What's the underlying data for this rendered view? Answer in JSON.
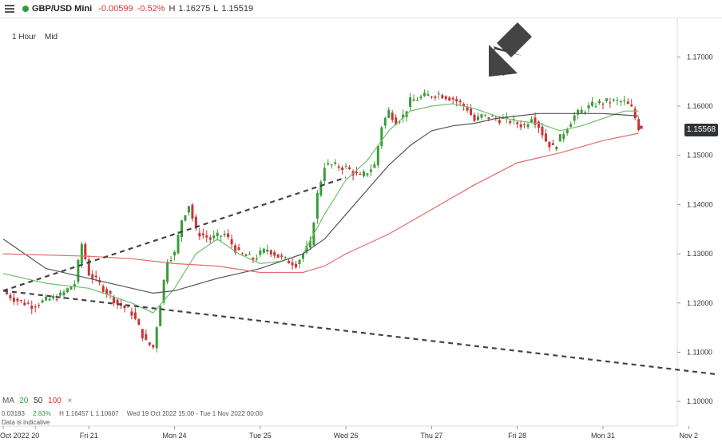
{
  "header": {
    "symbol": "GBP/USD Mini",
    "change": "-0.00599",
    "change_pct": "-0.52%",
    "high_label": "H",
    "high": "1.16275",
    "low_label": "L",
    "low": "1.15519"
  },
  "timeframe": "1 Hour",
  "price_type": "Mid",
  "price_tag": "1.15568",
  "legend": {
    "ma": "MA",
    "p20": "20",
    "p50": "50",
    "p100": "100",
    "close": "×"
  },
  "info": {
    "v1": "0.03183",
    "v2": "2.83%",
    "hl": "H 1.16457   L 1.10607",
    "range": "Wed 19 Oct 2022 15:00 - Tue 1 Nov 2022 00:00",
    "indicative": "Data is indicative"
  },
  "colors": {
    "up": "#3a9c3a",
    "down": "#cc3333",
    "ma20": "#6cc26c",
    "ma50": "#555555",
    "ma100": "#e36b6b",
    "trend": "#444444",
    "arrow": "#444444",
    "tag_bg": "#2f3438"
  },
  "chart_data": {
    "type": "candlestick",
    "ylim": [
      1.095,
      1.178
    ],
    "y_ticks": [
      1.17,
      1.16,
      1.15,
      1.14,
      1.13,
      1.12,
      1.11,
      1.1
    ],
    "y_tick_labels": [
      "1.17000",
      "1.16000",
      "1.15000",
      "1.14000",
      "1.13000",
      "1.12000",
      "1.11000",
      "1.10000"
    ],
    "x_ticks": [
      {
        "label": "Oct 2022",
        "x": 0
      },
      {
        "label": "20",
        "x": 9
      },
      {
        "label": "Fri 21",
        "x": 24
      },
      {
        "label": "Mon 24",
        "x": 48
      },
      {
        "label": "Tue 25",
        "x": 72
      },
      {
        "label": "Wed 26",
        "x": 96
      },
      {
        "label": "Thu 27",
        "x": 120
      },
      {
        "label": "Fri 28",
        "x": 144
      },
      {
        "label": "Mon 31",
        "x": 168
      },
      {
        "label": "Nov 2",
        "x": 192
      }
    ],
    "close_path": [
      [
        0,
        1.1222
      ],
      [
        4,
        1.1205
      ],
      [
        8,
        1.1195
      ],
      [
        12,
        1.1205
      ],
      [
        16,
        1.1215
      ],
      [
        20,
        1.124
      ],
      [
        22,
        1.132
      ],
      [
        24,
        1.126
      ],
      [
        28,
        1.123
      ],
      [
        32,
        1.12
      ],
      [
        36,
        1.118
      ],
      [
        40,
        1.112
      ],
      [
        42,
        1.111
      ],
      [
        44,
        1.12
      ],
      [
        46,
        1.129
      ],
      [
        48,
        1.13
      ],
      [
        50,
        1.137
      ],
      [
        52,
        1.14
      ],
      [
        54,
        1.1345
      ],
      [
        58,
        1.133
      ],
      [
        62,
        1.134
      ],
      [
        66,
        1.13
      ],
      [
        70,
        1.129
      ],
      [
        74,
        1.131
      ],
      [
        78,
        1.129
      ],
      [
        82,
        1.128
      ],
      [
        86,
        1.132
      ],
      [
        88,
        1.142
      ],
      [
        90,
        1.148
      ],
      [
        92,
        1.148
      ],
      [
        96,
        1.1475
      ],
      [
        100,
        1.1455
      ],
      [
        104,
        1.148
      ],
      [
        106,
        1.156
      ],
      [
        108,
        1.159
      ],
      [
        110,
        1.157
      ],
      [
        112,
        1.158
      ],
      [
        114,
        1.161
      ],
      [
        118,
        1.162
      ],
      [
        122,
        1.1625
      ],
      [
        126,
        1.1615
      ],
      [
        130,
        1.1595
      ],
      [
        132,
        1.157
      ],
      [
        134,
        1.158
      ],
      [
        138,
        1.1575
      ],
      [
        142,
        1.157
      ],
      [
        146,
        1.156
      ],
      [
        148,
        1.158
      ],
      [
        150,
        1.156
      ],
      [
        152,
        1.153
      ],
      [
        154,
        1.1515
      ],
      [
        156,
        1.1535
      ],
      [
        158,
        1.156
      ],
      [
        160,
        1.158
      ],
      [
        162,
        1.159
      ],
      [
        166,
        1.1605
      ],
      [
        170,
        1.161
      ],
      [
        174,
        1.1608
      ],
      [
        176,
        1.1595
      ],
      [
        178,
        1.1557
      ]
    ],
    "series": [
      {
        "name": "20",
        "values": [
          [
            0,
            1.126
          ],
          [
            12,
            1.124
          ],
          [
            24,
            1.123
          ],
          [
            36,
            1.12
          ],
          [
            42,
            1.118
          ],
          [
            48,
            1.123
          ],
          [
            54,
            1.13
          ],
          [
            60,
            1.133
          ],
          [
            66,
            1.13
          ],
          [
            72,
            1.128
          ],
          [
            78,
            1.1285
          ],
          [
            84,
            1.13
          ],
          [
            90,
            1.138
          ],
          [
            96,
            1.145
          ],
          [
            102,
            1.149
          ],
          [
            108,
            1.155
          ],
          [
            114,
            1.159
          ],
          [
            120,
            1.16
          ],
          [
            126,
            1.1605
          ],
          [
            132,
            1.1595
          ],
          [
            138,
            1.158
          ],
          [
            144,
            1.157
          ],
          [
            150,
            1.1565
          ],
          [
            156,
            1.155
          ],
          [
            162,
            1.156
          ],
          [
            168,
            1.1575
          ],
          [
            174,
            1.159
          ],
          [
            178,
            1.159
          ]
        ]
      },
      {
        "name": "50",
        "values": [
          [
            0,
            1.133
          ],
          [
            12,
            1.127
          ],
          [
            24,
            1.125
          ],
          [
            36,
            1.123
          ],
          [
            42,
            1.122
          ],
          [
            48,
            1.1225
          ],
          [
            60,
            1.125
          ],
          [
            72,
            1.127
          ],
          [
            84,
            1.13
          ],
          [
            90,
            1.133
          ],
          [
            96,
            1.138
          ],
          [
            102,
            1.143
          ],
          [
            108,
            1.148
          ],
          [
            114,
            1.152
          ],
          [
            120,
            1.155
          ],
          [
            126,
            1.156
          ],
          [
            132,
            1.1565
          ],
          [
            138,
            1.1575
          ],
          [
            144,
            1.158
          ],
          [
            150,
            1.1585
          ],
          [
            156,
            1.1585
          ],
          [
            162,
            1.1585
          ],
          [
            168,
            1.1585
          ],
          [
            174,
            1.1582
          ],
          [
            178,
            1.158
          ]
        ]
      },
      {
        "name": "100",
        "values": [
          [
            0,
            1.13
          ],
          [
            24,
            1.1295
          ],
          [
            36,
            1.129
          ],
          [
            48,
            1.128
          ],
          [
            60,
            1.1275
          ],
          [
            72,
            1.1262
          ],
          [
            84,
            1.1262
          ],
          [
            90,
            1.1275
          ],
          [
            96,
            1.13
          ],
          [
            108,
            1.134
          ],
          [
            120,
            1.139
          ],
          [
            132,
            1.144
          ],
          [
            144,
            1.1485
          ],
          [
            156,
            1.1505
          ],
          [
            168,
            1.153
          ],
          [
            178,
            1.1545
          ]
        ]
      }
    ],
    "trendlines": [
      {
        "from": [
          0,
          1.1225
        ],
        "to": [
          96,
          1.1455
        ]
      },
      {
        "from": [
          0,
          1.1225
        ],
        "to": [
          200,
          1.1055
        ]
      }
    ]
  }
}
